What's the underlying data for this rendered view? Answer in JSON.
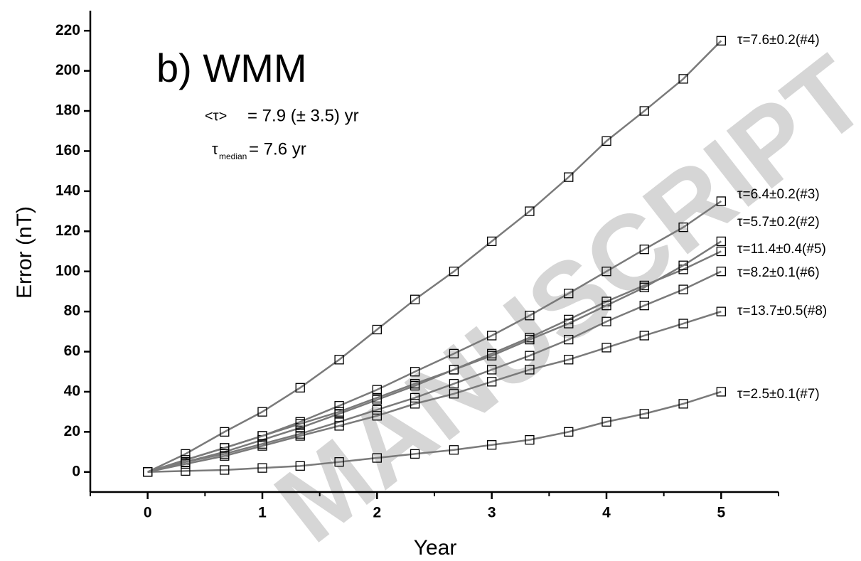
{
  "chart_data": {
    "type": "scatter",
    "xlabel": "Year",
    "ylabel": "Error (nT)",
    "xlim": [
      -0.5,
      5.5
    ],
    "xticks": [
      0,
      1,
      2,
      3,
      4,
      5
    ],
    "ylim": [
      -10,
      230
    ],
    "yticks": [
      0,
      20,
      40,
      60,
      80,
      100,
      120,
      140,
      160,
      180,
      200,
      220
    ],
    "annotations": [
      "b) WMM",
      "<τ>",
      "= 7.9 (± 3.5) yr",
      "τ",
      "median",
      "= 7.6 yr"
    ],
    "watermark": "MANUSCRIPT",
    "line_color": "#7a7a7a",
    "marker_color": "#000000",
    "x": [
      0,
      0.33,
      0.67,
      1,
      1.33,
      1.67,
      2,
      2.33,
      2.67,
      3,
      3.33,
      3.67,
      4,
      4.33,
      4.67,
      5
    ],
    "series": [
      {
        "name": "τ=7.6±0.2(#4)",
        "values": [
          0,
          9,
          20,
          30,
          42,
          56,
          71,
          86,
          100,
          115,
          130,
          147,
          165,
          180,
          196,
          215
        ]
      },
      {
        "name": "τ=6.4±0.2(#3)",
        "values": [
          0,
          6,
          12,
          18,
          25,
          33,
          41,
          50,
          59,
          68,
          78,
          89,
          100,
          111,
          122,
          135
        ]
      },
      {
        "name": "τ=5.7±0.2(#2)",
        "values": [
          0,
          5,
          10,
          16,
          22,
          29,
          36,
          43,
          51,
          59,
          67,
          76,
          85,
          93,
          101,
          110
        ]
      },
      {
        "name": "τ=11.4±0.4(#5)",
        "values": [
          0,
          6,
          12,
          18,
          24,
          30,
          37,
          44,
          51,
          58,
          66,
          74,
          83,
          92,
          103,
          115
        ]
      },
      {
        "name": "τ=8.2±0.1(#6)",
        "values": [
          0,
          5,
          9,
          14,
          19,
          25,
          31,
          37,
          44,
          51,
          58,
          66,
          75,
          83,
          91,
          100
        ]
      },
      {
        "name": "τ=13.7±0.5(#8)",
        "values": [
          0,
          4,
          8,
          13,
          18,
          23,
          28,
          34,
          39,
          45,
          51,
          56,
          62,
          68,
          74,
          80
        ]
      },
      {
        "name": "τ=2.5±0.1(#7)",
        "values": [
          0,
          0.5,
          1,
          2,
          3,
          5,
          7,
          9,
          11,
          13.5,
          16,
          20,
          25,
          29,
          34,
          40
        ]
      }
    ]
  }
}
